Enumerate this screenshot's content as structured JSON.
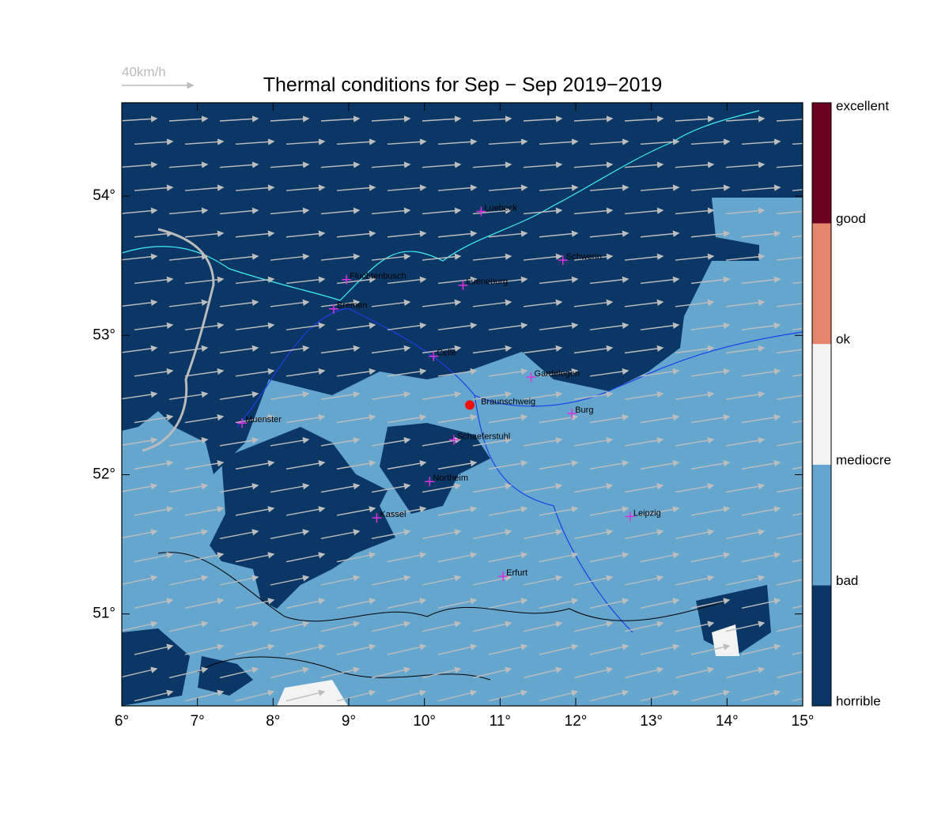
{
  "map": {
    "title": "Thermal conditions for Sep − Sep  2019−2019",
    "wind_scale": "40km/h",
    "xlim": [
      6,
      15
    ],
    "ylim": [
      50.34,
      54.67
    ],
    "xticks": [
      {
        "value": 6,
        "label": "6°"
      },
      {
        "value": 7,
        "label": "7°"
      },
      {
        "value": 8,
        "label": "8°"
      },
      {
        "value": 9,
        "label": "9°"
      },
      {
        "value": 10,
        "label": "10°"
      },
      {
        "value": 11,
        "label": "11°"
      },
      {
        "value": 12,
        "label": "12°"
      },
      {
        "value": 13,
        "label": "13°"
      },
      {
        "value": 14,
        "label": "14°"
      },
      {
        "value": 15,
        "label": "15°"
      }
    ],
    "yticks": [
      {
        "value": 51,
        "label": "51°"
      },
      {
        "value": 52,
        "label": "52°"
      },
      {
        "value": 53,
        "label": "53°"
      },
      {
        "value": 54,
        "label": "54°"
      }
    ],
    "colorbar": {
      "labels": [
        "horrible",
        "bad",
        "mediocre",
        "ok",
        "good",
        "excellent"
      ],
      "colors": [
        "#0b3766",
        "#65a6cf",
        "#f3f3f3",
        "#e5866a",
        "#6b0320"
      ]
    },
    "cities": [
      {
        "name": "Luebeck",
        "lon": 10.75,
        "lat": 53.89
      },
      {
        "name": "Schwerin",
        "lon": 11.83,
        "lat": 53.54
      },
      {
        "name": "Fluchtenbusch",
        "lon": 8.97,
        "lat": 53.4
      },
      {
        "name": "Lueneburg",
        "lon": 10.51,
        "lat": 53.36
      },
      {
        "name": "Bremen",
        "lon": 8.8,
        "lat": 53.19
      },
      {
        "name": "Celle",
        "lon": 10.12,
        "lat": 52.85
      },
      {
        "name": "Gardelegen",
        "lon": 11.41,
        "lat": 52.7
      },
      {
        "name": "Braunschweig",
        "lon": 10.6,
        "lat": 52.5,
        "highlight": true
      },
      {
        "name": "Burg",
        "lon": 11.95,
        "lat": 52.44
      },
      {
        "name": "Muenster",
        "lon": 7.59,
        "lat": 52.37
      },
      {
        "name": "Schaeferstuhl",
        "lon": 10.39,
        "lat": 52.25
      },
      {
        "name": "Northeim",
        "lon": 10.07,
        "lat": 51.95
      },
      {
        "name": "Kassel",
        "lon": 9.37,
        "lat": 51.69
      },
      {
        "name": "Leipzig",
        "lon": 12.72,
        "lat": 51.7
      },
      {
        "name": "Erfurt",
        "lon": 11.04,
        "lat": 51.27
      }
    ]
  }
}
